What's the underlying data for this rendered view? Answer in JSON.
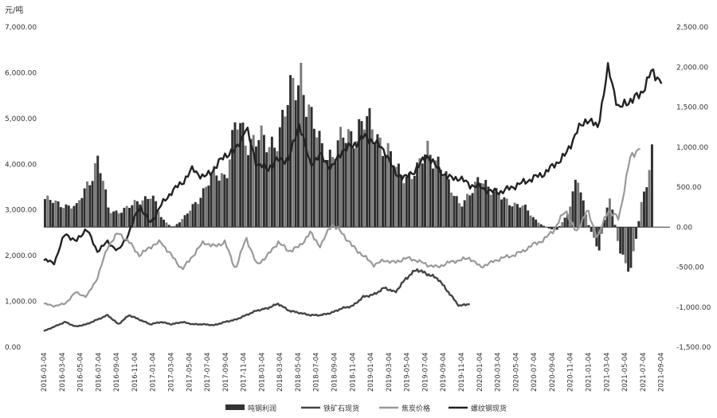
{
  "chart_data": {
    "type": "bar+line",
    "unit_left": "元/吨",
    "left_axis": {
      "ticks": [
        "0.00",
        "1,000.00",
        "2,000.00",
        "3,000.00",
        "4,000.00",
        "5,000.00",
        "6,000.00",
        "7,000.00"
      ],
      "range": [
        0,
        7000
      ]
    },
    "right_axis": {
      "ticks": [
        "-1,500.00",
        "-1,000.00",
        "-500.00",
        "0.00",
        "500.00",
        "1,000.00",
        "1,500.00",
        "2,000.00",
        "2,500.00"
      ],
      "range": [
        -1500,
        2500
      ]
    },
    "x_labels": [
      "2016-01-04",
      "2016-03-04",
      "2016-05-04",
      "2016-07-04",
      "2016-09-04",
      "2016-11-04",
      "2017-01-04",
      "2017-03-04",
      "2017-05-04",
      "2017-07-04",
      "2017-09-04",
      "2017-11-04",
      "2018-01-04",
      "2018-03-04",
      "2018-05-04",
      "2018-07-04",
      "2018-09-04",
      "2018-11-04",
      "2019-01-04",
      "2019-03-04",
      "2019-05-04",
      "2019-07-04",
      "2019-09-04",
      "2019-11-04",
      "2020-01-04",
      "2020-03-04",
      "2020-05-04",
      "2020-07-04",
      "2020-09-04",
      "2020-11-04",
      "2021-01-04",
      "2021-03-04",
      "2021-05-04",
      "2021-07-04",
      "2021-09-04"
    ],
    "legend": [
      {
        "label": "吨钢利润",
        "color": "#333333",
        "kind": "bar"
      },
      {
        "label": "铁矿石现货",
        "color": "#444444",
        "kind": "line"
      },
      {
        "label": "焦炭价格",
        "color": "#999999",
        "kind": "line"
      },
      {
        "label": "螺纹钢现货",
        "color": "#222222",
        "kind": "line"
      }
    ],
    "series": [
      {
        "name": "吨钢利润",
        "axis": "right",
        "kind": "bar",
        "points": [
          [
            0,
            350
          ],
          [
            1,
            300
          ],
          [
            3,
            250
          ],
          [
            4,
            550
          ],
          [
            5,
            850
          ],
          [
            6,
            200
          ],
          [
            7,
            200
          ],
          [
            8,
            250
          ],
          [
            9,
            350
          ],
          [
            10,
            400
          ],
          [
            11,
            100
          ],
          [
            12,
            0
          ],
          [
            13,
            100
          ],
          [
            14,
            300
          ],
          [
            15,
            450
          ],
          [
            16,
            700
          ],
          [
            17,
            650
          ],
          [
            18,
            1300
          ],
          [
            19,
            1100
          ],
          [
            20,
            1100
          ],
          [
            21,
            1000
          ],
          [
            22,
            1200
          ],
          [
            23,
            1600
          ],
          [
            24,
            2000
          ],
          [
            25,
            1300
          ],
          [
            26,
            1000
          ],
          [
            27,
            900
          ],
          [
            28,
            1100
          ],
          [
            29,
            1200
          ],
          [
            30,
            1300
          ],
          [
            31,
            1200
          ],
          [
            32,
            1000
          ],
          [
            33,
            700
          ],
          [
            34,
            650
          ],
          [
            35,
            700
          ],
          [
            36,
            1000
          ],
          [
            37,
            800
          ],
          [
            38,
            500
          ],
          [
            39,
            300
          ],
          [
            40,
            400
          ],
          [
            41,
            650
          ],
          [
            42,
            450
          ],
          [
            43,
            350
          ],
          [
            44,
            300
          ],
          [
            45,
            250
          ],
          [
            46,
            100
          ],
          [
            47,
            0
          ],
          [
            48,
            -50
          ],
          [
            49,
            150
          ],
          [
            50,
            600
          ],
          [
            51,
            50
          ],
          [
            52,
            -300
          ],
          [
            53,
            400
          ],
          [
            54,
            -300
          ],
          [
            55,
            -600
          ],
          [
            56,
            300
          ],
          [
            57,
            900
          ]
        ]
      },
      {
        "name": "螺纹钢现货",
        "axis": "left",
        "kind": "line",
        "points": [
          [
            0,
            1900
          ],
          [
            1,
            1850
          ],
          [
            2,
            2500
          ],
          [
            3,
            2300
          ],
          [
            4,
            2600
          ],
          [
            5,
            2100
          ],
          [
            6,
            2300
          ],
          [
            7,
            2100
          ],
          [
            8,
            2500
          ],
          [
            9,
            3100
          ],
          [
            10,
            2700
          ],
          [
            11,
            3100
          ],
          [
            12,
            3400
          ],
          [
            13,
            3600
          ],
          [
            14,
            3900
          ],
          [
            15,
            3700
          ],
          [
            16,
            3900
          ],
          [
            17,
            4200
          ],
          [
            18,
            4300
          ],
          [
            19,
            4800
          ],
          [
            20,
            4000
          ],
          [
            21,
            3900
          ],
          [
            22,
            4100
          ],
          [
            23,
            4100
          ],
          [
            24,
            4900
          ],
          [
            25,
            4000
          ],
          [
            26,
            4200
          ],
          [
            27,
            3900
          ],
          [
            28,
            4300
          ],
          [
            29,
            4400
          ],
          [
            30,
            4600
          ],
          [
            31,
            4500
          ],
          [
            32,
            4300
          ],
          [
            33,
            3800
          ],
          [
            34,
            3700
          ],
          [
            35,
            3900
          ],
          [
            36,
            4200
          ],
          [
            37,
            3900
          ],
          [
            38,
            3700
          ],
          [
            39,
            3700
          ],
          [
            40,
            3550
          ],
          [
            41,
            3500
          ],
          [
            42,
            3400
          ],
          [
            43,
            3400
          ],
          [
            44,
            3500
          ],
          [
            45,
            3600
          ],
          [
            46,
            3700
          ],
          [
            47,
            3800
          ],
          [
            48,
            4000
          ],
          [
            49,
            4200
          ],
          [
            50,
            4700
          ],
          [
            51,
            5000
          ],
          [
            52,
            4800
          ],
          [
            53,
            6100
          ],
          [
            54,
            5200
          ],
          [
            55,
            5400
          ],
          [
            56,
            5500
          ],
          [
            57,
            6000
          ],
          [
            58,
            5850
          ]
        ]
      },
      {
        "name": "焦炭价格",
        "axis": "left",
        "kind": "line",
        "points": [
          [
            0,
            950
          ],
          [
            1,
            900
          ],
          [
            2,
            950
          ],
          [
            3,
            1200
          ],
          [
            4,
            1100
          ],
          [
            5,
            1500
          ],
          [
            6,
            2200
          ],
          [
            7,
            2500
          ],
          [
            8,
            2300
          ],
          [
            9,
            2000
          ],
          [
            10,
            2200
          ],
          [
            11,
            2300
          ],
          [
            12,
            2000
          ],
          [
            13,
            1700
          ],
          [
            14,
            2000
          ],
          [
            15,
            2300
          ],
          [
            16,
            2200
          ],
          [
            17,
            2300
          ],
          [
            18,
            1700
          ],
          [
            19,
            2400
          ],
          [
            20,
            1800
          ],
          [
            21,
            2000
          ],
          [
            22,
            2300
          ],
          [
            23,
            2100
          ],
          [
            24,
            2200
          ],
          [
            25,
            2500
          ],
          [
            26,
            2200
          ],
          [
            27,
            2700
          ],
          [
            28,
            2500
          ],
          [
            29,
            2200
          ],
          [
            30,
            2000
          ],
          [
            31,
            1800
          ],
          [
            32,
            1900
          ],
          [
            33,
            1850
          ],
          [
            34,
            1950
          ],
          [
            35,
            1900
          ],
          [
            36,
            1800
          ],
          [
            37,
            1750
          ],
          [
            38,
            1850
          ],
          [
            39,
            1900
          ],
          [
            40,
            1950
          ],
          [
            41,
            1750
          ],
          [
            42,
            1850
          ],
          [
            43,
            1950
          ],
          [
            44,
            2000
          ],
          [
            45,
            2100
          ],
          [
            46,
            2250
          ],
          [
            47,
            2350
          ],
          [
            48,
            2600
          ],
          [
            49,
            3000
          ],
          [
            50,
            2500
          ],
          [
            51,
            3000
          ],
          [
            52,
            2400
          ],
          [
            53,
            3000
          ],
          [
            54,
            2800
          ],
          [
            55,
            4100
          ],
          [
            56,
            4400
          ]
        ]
      },
      {
        "name": "铁矿石现货",
        "axis": "left",
        "kind": "line",
        "points": [
          [
            0,
            350
          ],
          [
            1,
            450
          ],
          [
            2,
            550
          ],
          [
            3,
            450
          ],
          [
            4,
            500
          ],
          [
            5,
            600
          ],
          [
            6,
            700
          ],
          [
            7,
            500
          ],
          [
            8,
            700
          ],
          [
            9,
            600
          ],
          [
            10,
            500
          ],
          [
            11,
            550
          ],
          [
            12,
            500
          ],
          [
            13,
            550
          ],
          [
            14,
            500
          ],
          [
            15,
            500
          ],
          [
            16,
            480
          ],
          [
            17,
            550
          ],
          [
            18,
            600
          ],
          [
            19,
            700
          ],
          [
            20,
            800
          ],
          [
            21,
            850
          ],
          [
            22,
            950
          ],
          [
            23,
            800
          ],
          [
            24,
            750
          ],
          [
            25,
            700
          ],
          [
            26,
            700
          ],
          [
            27,
            750
          ],
          [
            28,
            850
          ],
          [
            29,
            900
          ],
          [
            30,
            1100
          ],
          [
            31,
            1150
          ],
          [
            32,
            1300
          ],
          [
            33,
            1200
          ],
          [
            34,
            1500
          ],
          [
            35,
            1700
          ],
          [
            36,
            1600
          ],
          [
            37,
            1500
          ],
          [
            38,
            1200
          ],
          [
            39,
            900
          ],
          [
            40,
            950
          ]
        ]
      }
    ]
  }
}
